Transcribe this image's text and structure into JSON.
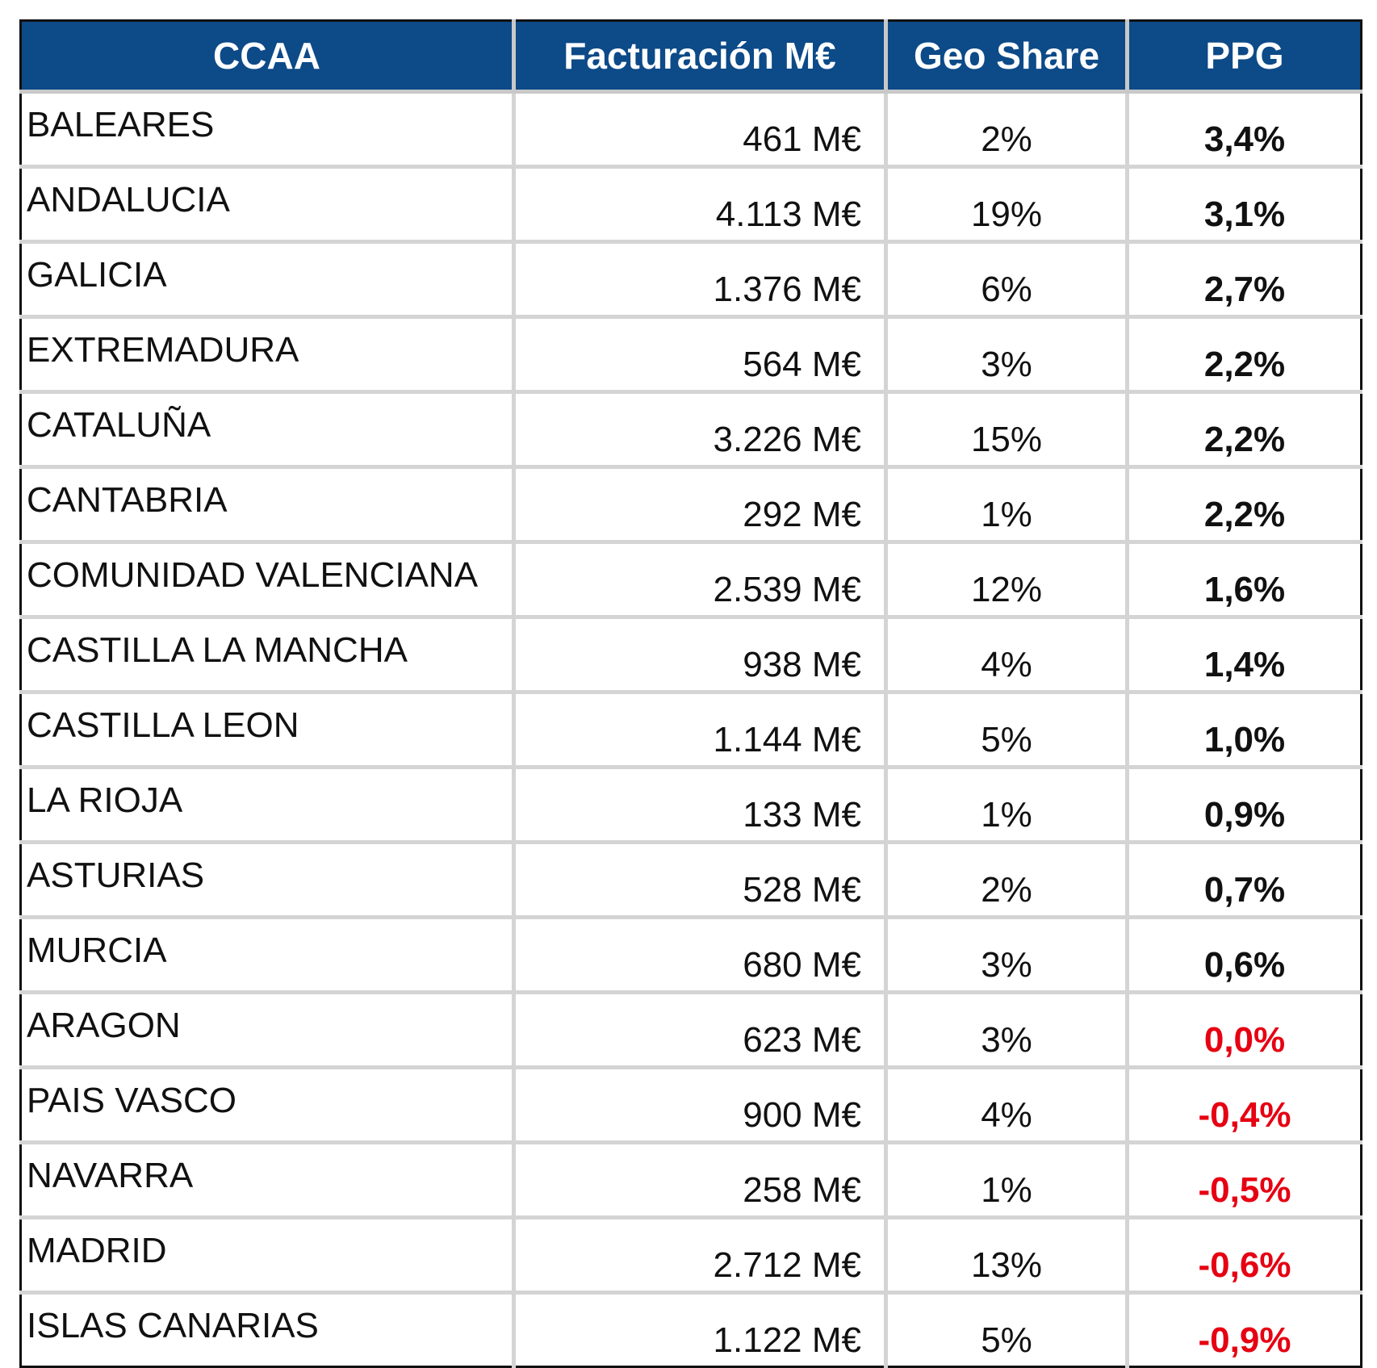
{
  "table": {
    "header": [
      "CCAA",
      "Facturación M€",
      "Geo Share",
      "PPG"
    ],
    "rows": [
      [
        "BALEARES",
        "461 M€",
        "2%",
        "3,4%"
      ],
      [
        "ANDALUCIA",
        "4.113 M€",
        "19%",
        "3,1%"
      ],
      [
        "GALICIA",
        "1.376 M€",
        "6%",
        "2,7%"
      ],
      [
        "EXTREMADURA",
        "564 M€",
        "3%",
        "2,2%"
      ],
      [
        "CATALUÑA",
        "3.226 M€",
        "15%",
        "2,2%"
      ],
      [
        "CANTABRIA",
        "292 M€",
        "1%",
        "2,2%"
      ],
      [
        "COMUNIDAD VALENCIANA",
        "2.539 M€",
        "12%",
        "1,6%"
      ],
      [
        "CASTILLA LA MANCHA",
        "938 M€",
        "4%",
        "1,4%"
      ],
      [
        "CASTILLA LEON",
        "1.144 M€",
        "5%",
        "1,0%"
      ],
      [
        "LA RIOJA",
        "133 M€",
        "1%",
        "0,9%"
      ],
      [
        "ASTURIAS",
        "528 M€",
        "2%",
        "0,7%"
      ],
      [
        "MURCIA",
        "680 M€",
        "3%",
        "0,6%"
      ],
      [
        "ARAGON",
        "623 M€",
        "3%",
        "0,0%"
      ],
      [
        "PAIS VASCO",
        "900 M€",
        "4%",
        "-0,4%"
      ],
      [
        "NAVARRA",
        "258 M€",
        "1%",
        "-0,5%"
      ],
      [
        "MADRID",
        "2.712 M€",
        "13%",
        "-0,6%"
      ],
      [
        "ISLAS CANARIAS",
        "1.122 M€",
        "5%",
        "-0,9%"
      ]
    ]
  }
}
